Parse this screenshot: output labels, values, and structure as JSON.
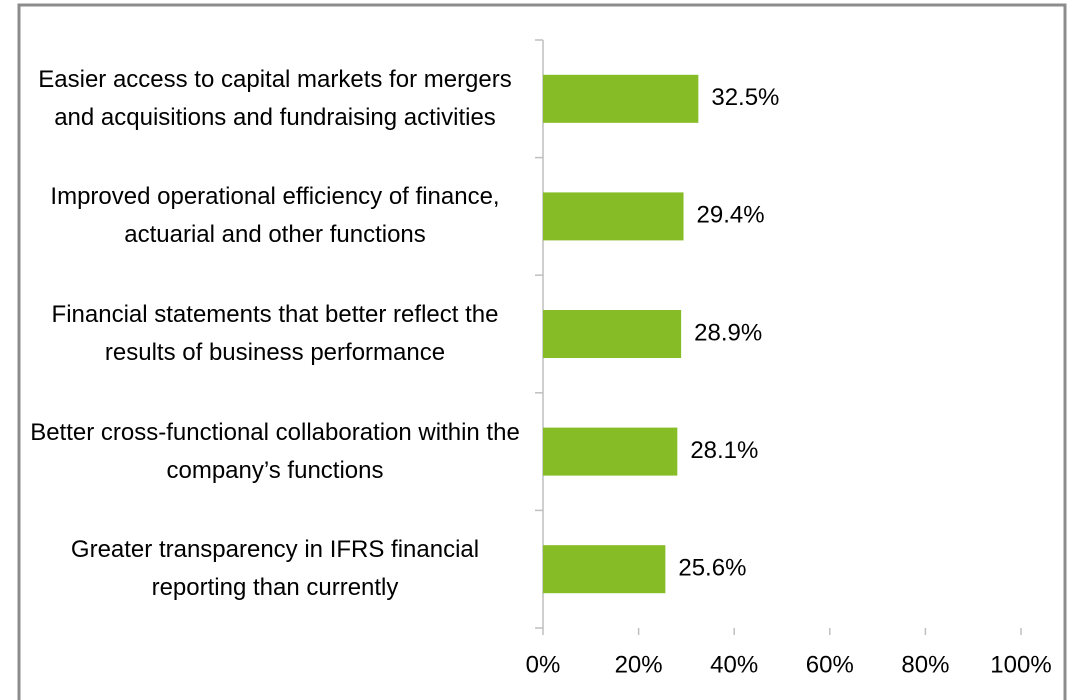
{
  "chart_data": {
    "type": "hbar",
    "categories": [
      "Easier access to capital markets for mergers and acquisitions and fundraising activities",
      "Improved operational efficiency of finance, actuarial and other functions",
      "Financial statements that better reflect the results of business performance",
      "Better cross-functional collaboration within the company’s functions",
      "Greater transparency in IFRS financial reporting than currently"
    ],
    "values": [
      32.5,
      29.4,
      28.9,
      28.1,
      25.6
    ],
    "value_labels": [
      "32.5%",
      "29.4%",
      "28.9%",
      "28.1%",
      "25.6%"
    ],
    "color": "#86bc25",
    "xlim": [
      0,
      100
    ],
    "xticks": [
      {
        "value": 0,
        "label": "0%"
      },
      {
        "value": 20,
        "label": "20%"
      },
      {
        "value": 40,
        "label": "40%"
      },
      {
        "value": 60,
        "label": "60%"
      },
      {
        "value": 80,
        "label": "80%"
      },
      {
        "value": 100,
        "label": "100%"
      }
    ],
    "grid": false
  }
}
